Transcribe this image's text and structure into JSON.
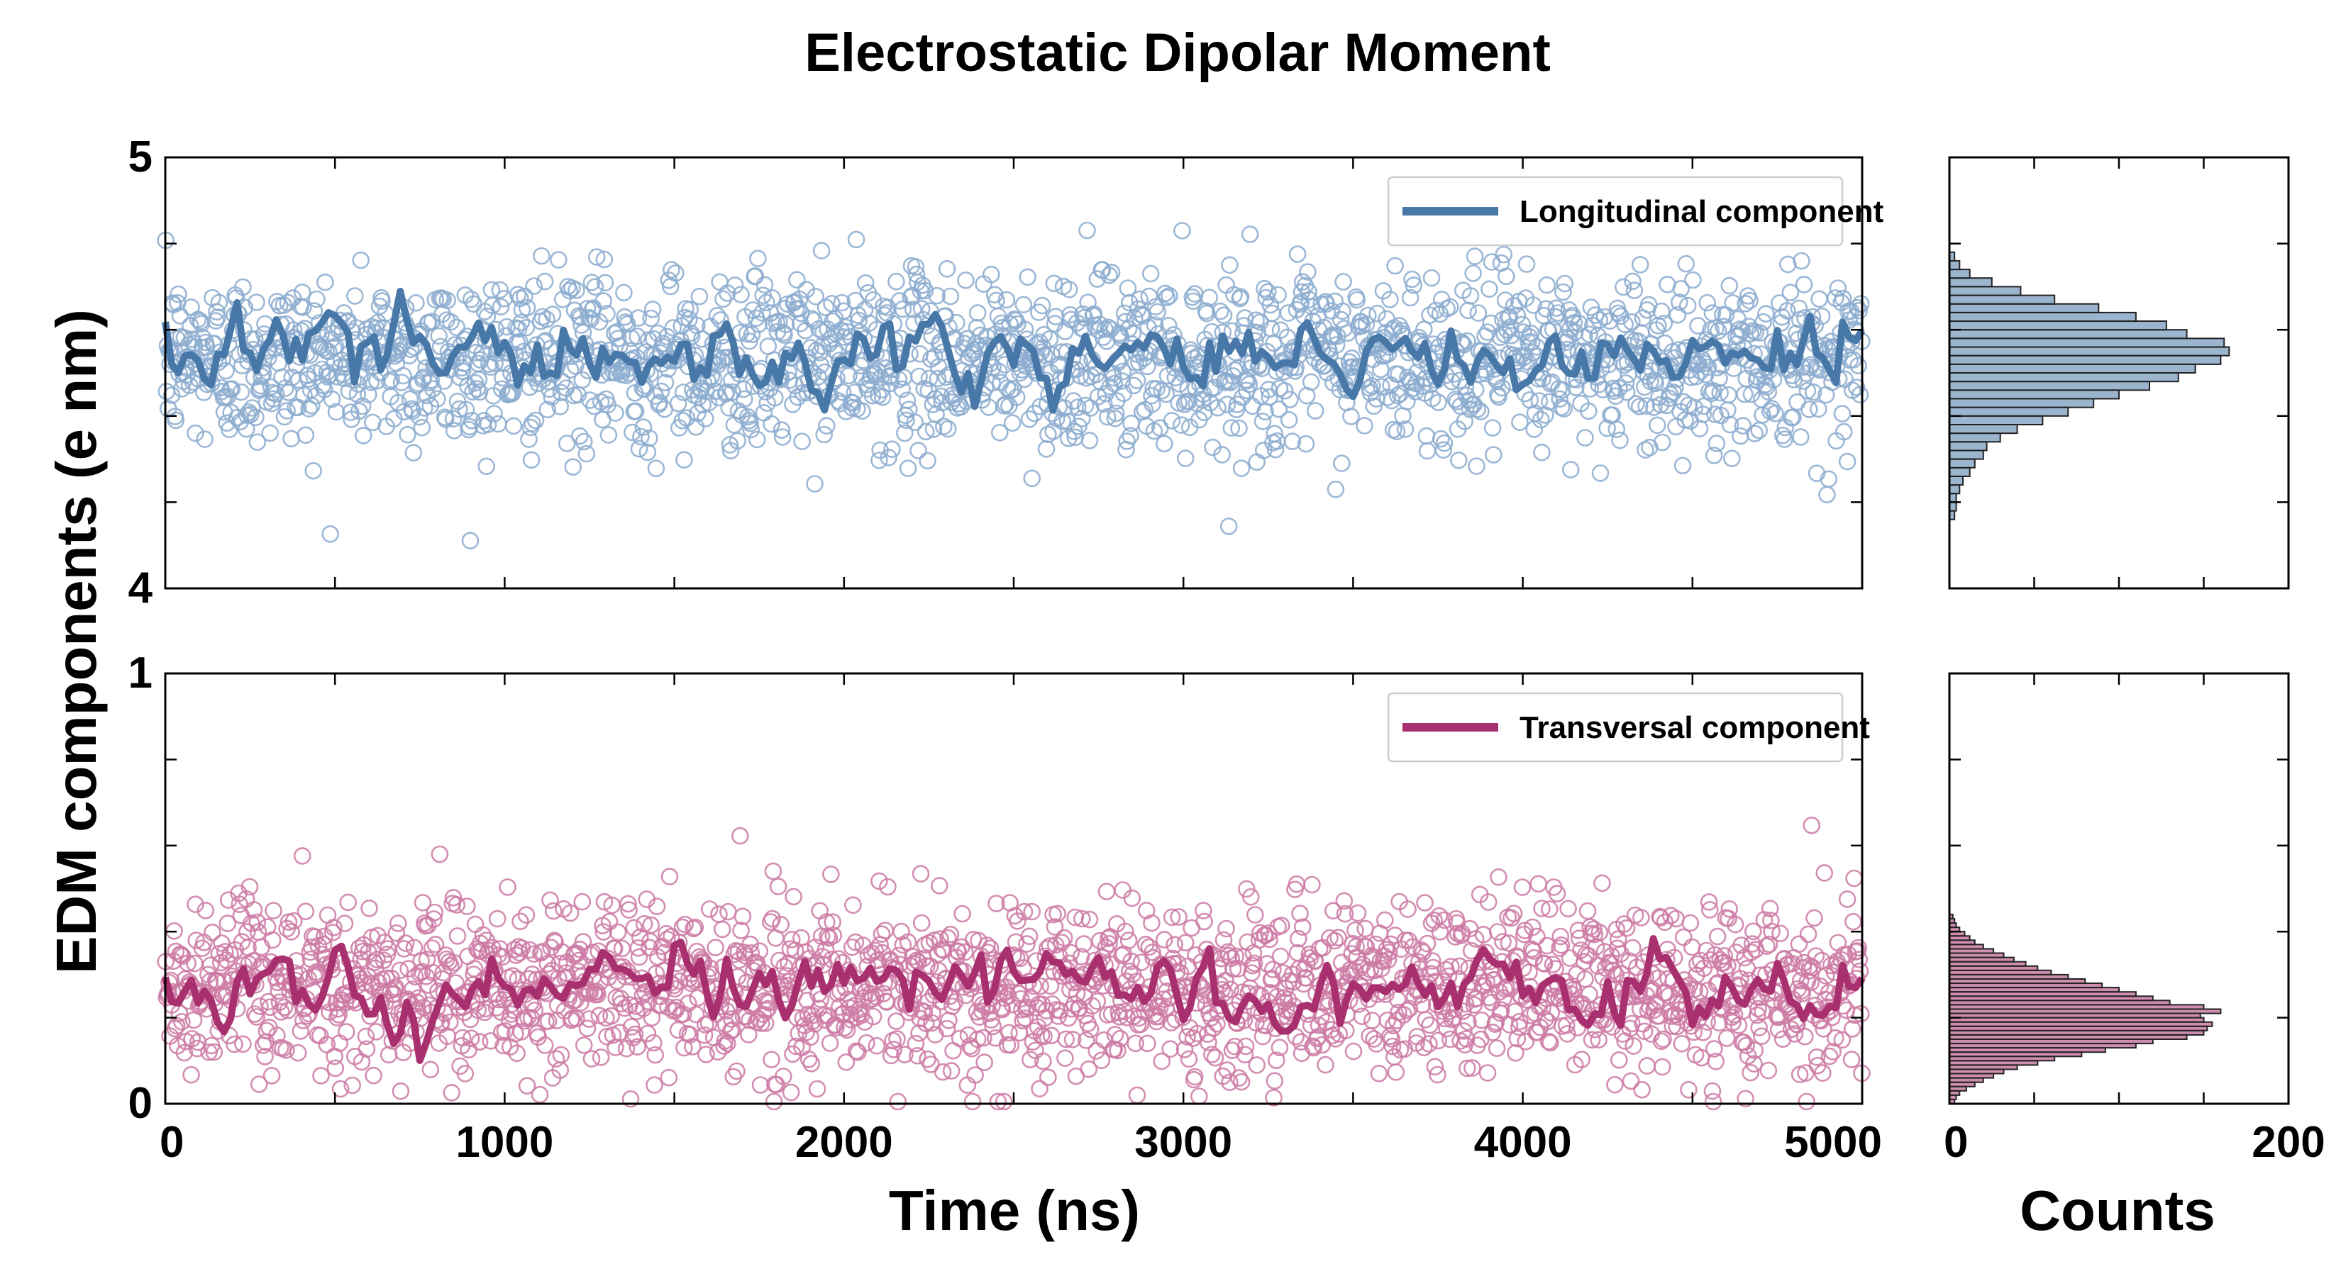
{
  "figure": {
    "title": "Electrostatic Dipolar Moment",
    "ylabel": "EDM components (e nm)",
    "xlabel": "Time (ns)",
    "hist_xlabel": "Counts"
  },
  "chart_data": [
    {
      "type": "scatter",
      "panel": "top",
      "xlim": [
        0,
        5000
      ],
      "ylim": [
        4,
        5
      ],
      "y_tick_labels": [
        "4",
        "5"
      ],
      "x_minor_ticks": [
        500,
        1000,
        1500,
        2000,
        2500,
        3000,
        3500,
        4000,
        4500
      ],
      "y_minor_ticks": [
        4.2,
        4.4,
        4.6,
        4.8
      ],
      "legend_position": "top-right",
      "grid": false,
      "series": [
        {
          "name": "Longitudinal component",
          "kind": "markers+running-mean",
          "color": "#4878a8",
          "marker_color": "#8caccf",
          "n_points": 2000,
          "mean": 4.53,
          "std": 0.1,
          "running_mean_fluctuation": 0.04
        }
      ]
    },
    {
      "type": "scatter",
      "panel": "bottom",
      "xlim": [
        0,
        5000
      ],
      "ylim": [
        0,
        1
      ],
      "x_tick_labels": [
        "0",
        "1000",
        "2000",
        "3000",
        "4000",
        "5000"
      ],
      "x_ticks": [
        0,
        1000,
        2000,
        3000,
        4000,
        5000
      ],
      "y_tick_labels": [
        "0",
        "1"
      ],
      "y_minor_ticks": [
        0.2,
        0.4,
        0.6,
        0.8
      ],
      "legend_position": "top-right",
      "grid": false,
      "series": [
        {
          "name": "Transversal component",
          "kind": "markers+running-mean",
          "color": "#a8306e",
          "marker_color": "#cc7aa5",
          "n_points": 2000,
          "mean": 0.27,
          "std": 0.1,
          "running_mean_fluctuation": 0.04
        }
      ]
    },
    {
      "type": "bar",
      "orientation": "horizontal",
      "panel": "top-histogram",
      "xlim": [
        0,
        200
      ],
      "ylim": [
        4,
        5
      ],
      "color": "#4878a8",
      "bins": [
        [
          4.17,
          3
        ],
        [
          4.19,
          4
        ],
        [
          4.21,
          4
        ],
        [
          4.23,
          6
        ],
        [
          4.25,
          8
        ],
        [
          4.27,
          12
        ],
        [
          4.29,
          15
        ],
        [
          4.31,
          20
        ],
        [
          4.33,
          22
        ],
        [
          4.35,
          30
        ],
        [
          4.37,
          40
        ],
        [
          4.39,
          55
        ],
        [
          4.41,
          70
        ],
        [
          4.43,
          85
        ],
        [
          4.45,
          100
        ],
        [
          4.47,
          118
        ],
        [
          4.49,
          135
        ],
        [
          4.51,
          145
        ],
        [
          4.53,
          160
        ],
        [
          4.55,
          165
        ],
        [
          4.57,
          162
        ],
        [
          4.59,
          140
        ],
        [
          4.61,
          128
        ],
        [
          4.63,
          110
        ],
        [
          4.65,
          88
        ],
        [
          4.67,
          62
        ],
        [
          4.69,
          42
        ],
        [
          4.71,
          25
        ],
        [
          4.73,
          12
        ],
        [
          4.75,
          6
        ],
        [
          4.77,
          3
        ]
      ]
    },
    {
      "type": "bar",
      "orientation": "horizontal",
      "panel": "bottom-histogram",
      "xlim": [
        0,
        200
      ],
      "ylim": [
        0,
        1
      ],
      "x_tick_labels": [
        "0",
        "200"
      ],
      "x_ticks": [
        0,
        200
      ],
      "x_minor_ticks": [
        50,
        100,
        150
      ],
      "color": "#a8306e",
      "bins": [
        [
          0.005,
          3
        ],
        [
          0.015,
          4
        ],
        [
          0.025,
          6
        ],
        [
          0.035,
          10
        ],
        [
          0.045,
          15
        ],
        [
          0.055,
          20
        ],
        [
          0.065,
          26
        ],
        [
          0.075,
          32
        ],
        [
          0.085,
          40
        ],
        [
          0.095,
          52
        ],
        [
          0.105,
          62
        ],
        [
          0.115,
          78
        ],
        [
          0.125,
          92
        ],
        [
          0.135,
          110
        ],
        [
          0.145,
          120
        ],
        [
          0.155,
          140
        ],
        [
          0.165,
          150
        ],
        [
          0.175,
          152
        ],
        [
          0.185,
          155
        ],
        [
          0.195,
          150
        ],
        [
          0.205,
          148
        ],
        [
          0.215,
          160
        ],
        [
          0.225,
          150
        ],
        [
          0.235,
          130
        ],
        [
          0.245,
          120
        ],
        [
          0.255,
          110
        ],
        [
          0.265,
          100
        ],
        [
          0.275,
          90
        ],
        [
          0.285,
          80
        ],
        [
          0.295,
          70
        ],
        [
          0.305,
          60
        ],
        [
          0.315,
          52
        ],
        [
          0.325,
          45
        ],
        [
          0.335,
          38
        ],
        [
          0.345,
          32
        ],
        [
          0.355,
          26
        ],
        [
          0.365,
          20
        ],
        [
          0.375,
          15
        ],
        [
          0.385,
          12
        ],
        [
          0.395,
          9
        ],
        [
          0.405,
          6
        ],
        [
          0.415,
          4
        ],
        [
          0.425,
          3
        ],
        [
          0.435,
          2
        ]
      ]
    }
  ]
}
